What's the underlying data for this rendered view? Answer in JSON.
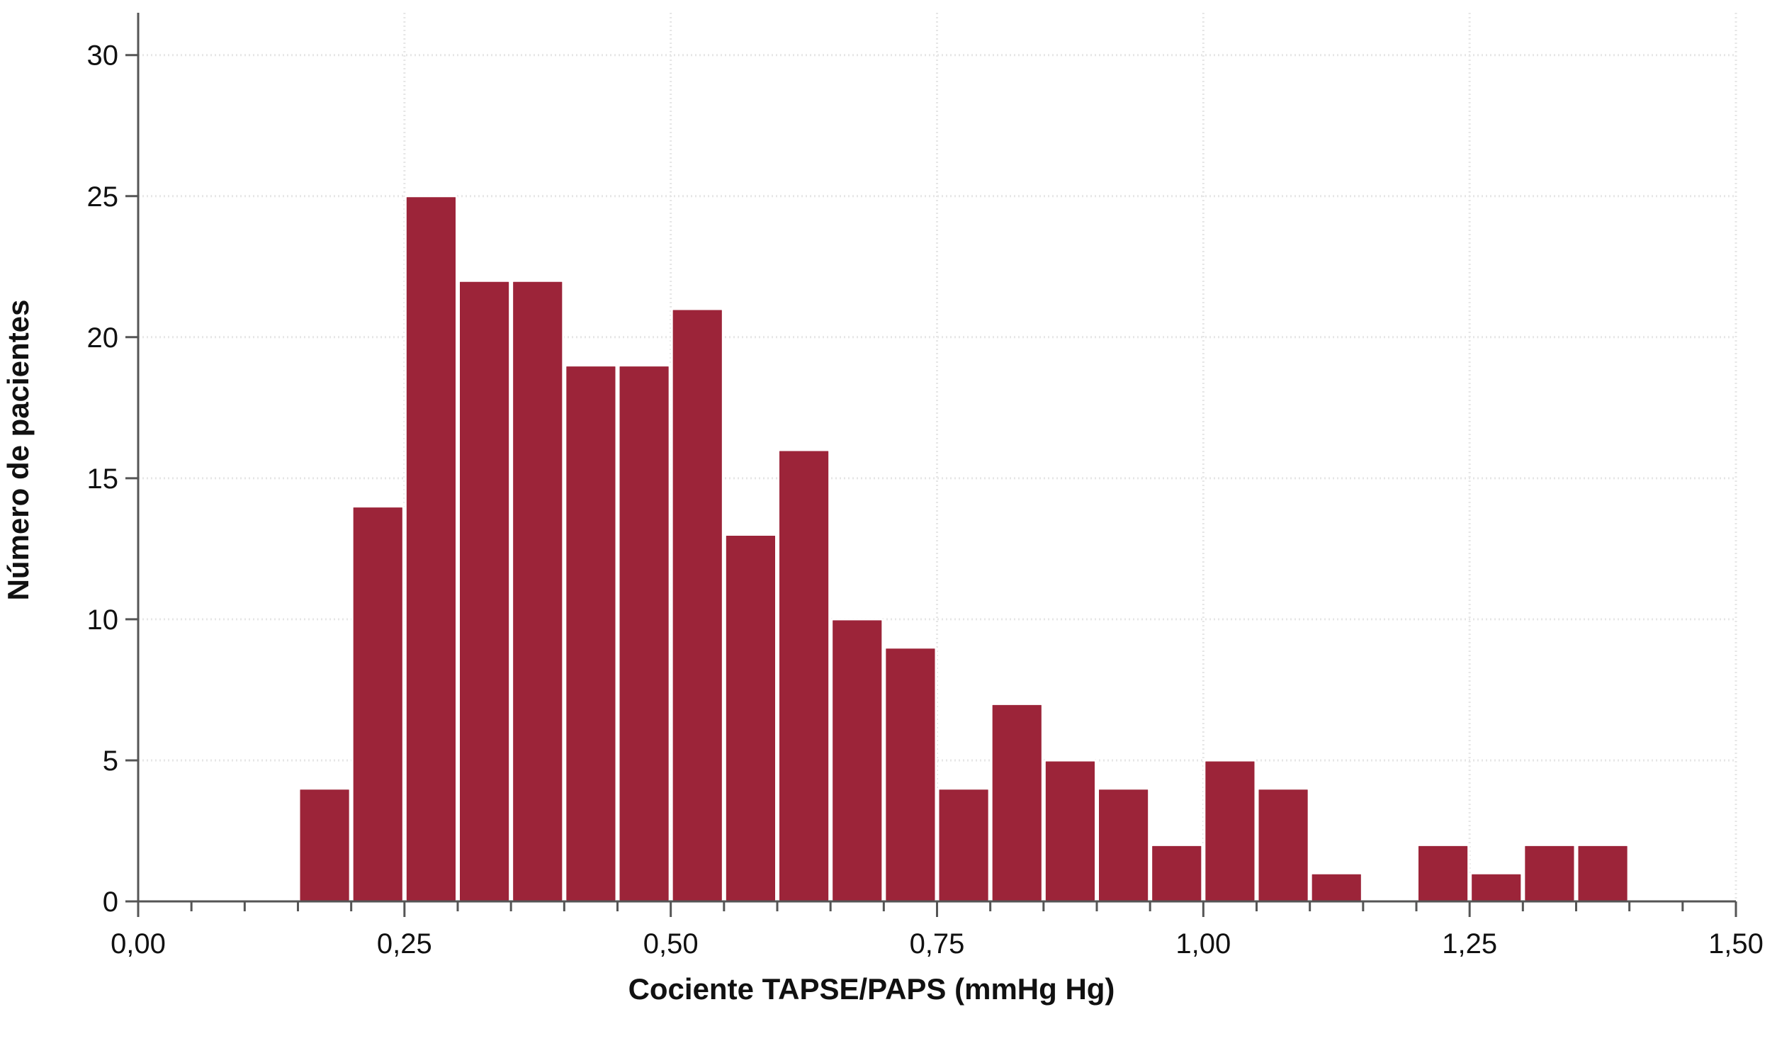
{
  "chart_data": {
    "type": "bar",
    "xlabel": "Cociente TAPSE/PAPS (mmHg Hg)",
    "ylabel": "Número de pacientes",
    "xlim": [
      0,
      1.5
    ],
    "ylim": [
      0,
      31.5
    ],
    "x_ticks": [
      {
        "value": 0.0,
        "label": "0,00"
      },
      {
        "value": 0.25,
        "label": "0,25"
      },
      {
        "value": 0.5,
        "label": "0,50"
      },
      {
        "value": 0.75,
        "label": "0,75"
      },
      {
        "value": 1.0,
        "label": "1,00"
      },
      {
        "value": 1.25,
        "label": "1,25"
      },
      {
        "value": 1.5,
        "label": "1,50"
      }
    ],
    "x_minor_step": 0.05,
    "y_ticks": [
      {
        "value": 0,
        "label": "0"
      },
      {
        "value": 5,
        "label": "5"
      },
      {
        "value": 10,
        "label": "10"
      },
      {
        "value": 15,
        "label": "15"
      },
      {
        "value": 20,
        "label": "20"
      },
      {
        "value": 25,
        "label": "25"
      },
      {
        "value": 30,
        "label": "30"
      }
    ],
    "grid": true,
    "bar_color": "#9c2439",
    "bins": [
      {
        "start": 0.15,
        "end": 0.2,
        "count": 4
      },
      {
        "start": 0.2,
        "end": 0.25,
        "count": 14
      },
      {
        "start": 0.25,
        "end": 0.3,
        "count": 25
      },
      {
        "start": 0.3,
        "end": 0.35,
        "count": 22
      },
      {
        "start": 0.35,
        "end": 0.4,
        "count": 22
      },
      {
        "start": 0.4,
        "end": 0.45,
        "count": 19
      },
      {
        "start": 0.45,
        "end": 0.5,
        "count": 19
      },
      {
        "start": 0.5,
        "end": 0.55,
        "count": 21
      },
      {
        "start": 0.55,
        "end": 0.6,
        "count": 13
      },
      {
        "start": 0.6,
        "end": 0.65,
        "count": 16
      },
      {
        "start": 0.65,
        "end": 0.7,
        "count": 10
      },
      {
        "start": 0.7,
        "end": 0.75,
        "count": 9
      },
      {
        "start": 0.75,
        "end": 0.8,
        "count": 4
      },
      {
        "start": 0.8,
        "end": 0.85,
        "count": 7
      },
      {
        "start": 0.85,
        "end": 0.9,
        "count": 5
      },
      {
        "start": 0.9,
        "end": 0.95,
        "count": 4
      },
      {
        "start": 0.95,
        "end": 1.0,
        "count": 2
      },
      {
        "start": 1.0,
        "end": 1.05,
        "count": 5
      },
      {
        "start": 1.05,
        "end": 1.1,
        "count": 4
      },
      {
        "start": 1.1,
        "end": 1.15,
        "count": 1
      },
      {
        "start": 1.2,
        "end": 1.25,
        "count": 2
      },
      {
        "start": 1.25,
        "end": 1.3,
        "count": 1
      },
      {
        "start": 1.3,
        "end": 1.35,
        "count": 2
      },
      {
        "start": 1.35,
        "end": 1.4,
        "count": 2
      }
    ]
  }
}
